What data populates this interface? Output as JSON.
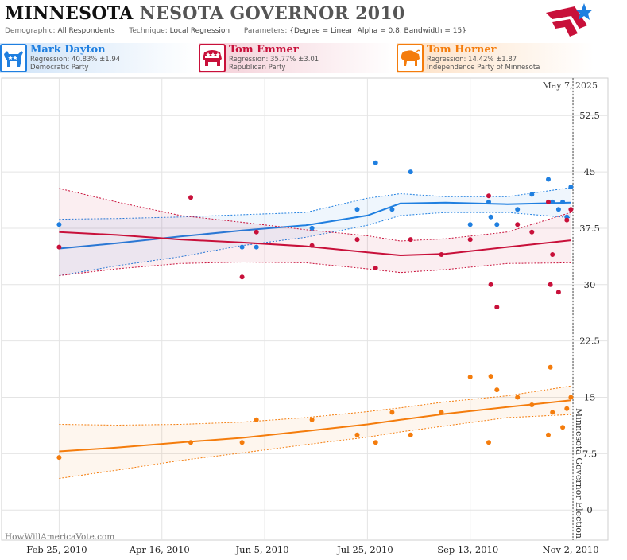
{
  "header": {
    "title_bold": "MINNESOTA",
    "title_rest": "NESOTA GOVERNOR 2010",
    "demographic_label": "Demographic:",
    "demographic_value": "All Respondents",
    "technique_label": "Technique:",
    "technique_value": "Local Regression",
    "parameters_label": "Parameters:",
    "parameters_value": "{Degree = Linear, Alpha = 0.8, Bandwidth = 15}"
  },
  "candidates": [
    {
      "name": "Mark Dayton",
      "regression": "Regression: 40.83% ±1.94",
      "party": "Democratic Party",
      "color": "#1f7fe0",
      "icon": "donkey-icon"
    },
    {
      "name": "Tom Emmer",
      "regression": "Regression: 35.77% ±3.01",
      "party": "Republican Party",
      "color": "#c8103a",
      "icon": "elephant-icon"
    },
    {
      "name": "Tom Horner",
      "regression": "Regression: 14.42% ±1.87",
      "party": "Independence Party  of Minnesota",
      "color": "#f47c0c",
      "icon": "buffalo-icon"
    }
  ],
  "footer": {
    "watermark": "HowWillAmericaVote.com"
  },
  "chart_data": {
    "type": "scatter",
    "x_axis": {
      "type": "date",
      "ticks": [
        "Feb 25, 2010",
        "Apr 16, 2010",
        "Jun 5, 2010",
        "Jul 25, 2010",
        "Sep 13, 2010",
        "Nov 2, 2010"
      ],
      "range": [
        "2010-01-28",
        "2010-11-19"
      ]
    },
    "y_axis": {
      "ticks": [
        "0",
        "7.5",
        "15",
        "22.5",
        "30",
        "37.5",
        "45",
        "52.5"
      ],
      "range": [
        -4,
        57.5
      ],
      "position": "right"
    },
    "grid": true,
    "annotations": {
      "current_date": "May 7, 2025",
      "election_label": "Minnesota Governor Election",
      "election_date": "2010-11-02"
    },
    "series": [
      {
        "name": "Mark Dayton",
        "color": "#1f7fe0",
        "points": [
          [
            "2010-02-25",
            38
          ],
          [
            "2010-05-25",
            35
          ],
          [
            "2010-06-01",
            35
          ],
          [
            "2010-06-28",
            37.5
          ],
          [
            "2010-07-20",
            40
          ],
          [
            "2010-07-29",
            46.2
          ],
          [
            "2010-08-06",
            40
          ],
          [
            "2010-08-15",
            45
          ],
          [
            "2010-09-13",
            38
          ],
          [
            "2010-09-22",
            41
          ],
          [
            "2010-09-23",
            39
          ],
          [
            "2010-09-26",
            38
          ],
          [
            "2010-10-06",
            40
          ],
          [
            "2010-10-13",
            42
          ],
          [
            "2010-10-21",
            44
          ],
          [
            "2010-10-23",
            41
          ],
          [
            "2010-10-26",
            40
          ],
          [
            "2010-10-28",
            41
          ],
          [
            "2010-10-30",
            39
          ],
          [
            "2010-11-01",
            43
          ]
        ],
        "trend": [
          [
            "2010-02-25",
            34.8
          ],
          [
            "2010-03-25",
            35.5
          ],
          [
            "2010-04-25",
            36.4
          ],
          [
            "2010-05-25",
            37.2
          ],
          [
            "2010-06-25",
            37.9
          ],
          [
            "2010-07-25",
            39.2
          ],
          [
            "2010-08-10",
            40.8
          ],
          [
            "2010-09-01",
            40.9
          ],
          [
            "2010-10-01",
            40.7
          ],
          [
            "2010-11-01",
            40.9
          ]
        ],
        "trend_upper": [
          [
            "2010-02-25",
            38.7
          ],
          [
            "2010-03-25",
            38.8
          ],
          [
            "2010-04-25",
            39.0
          ],
          [
            "2010-05-25",
            39.3
          ],
          [
            "2010-06-25",
            39.6
          ],
          [
            "2010-07-25",
            41.5
          ],
          [
            "2010-08-10",
            42.1
          ],
          [
            "2010-09-01",
            41.7
          ],
          [
            "2010-10-01",
            41.7
          ],
          [
            "2010-11-01",
            42.9
          ]
        ],
        "trend_lower": [
          [
            "2010-02-25",
            31.2
          ],
          [
            "2010-03-25",
            32.5
          ],
          [
            "2010-04-25",
            33.7
          ],
          [
            "2010-05-25",
            35.2
          ],
          [
            "2010-06-25",
            36.3
          ],
          [
            "2010-07-25",
            37.9
          ],
          [
            "2010-08-10",
            39.2
          ],
          [
            "2010-09-01",
            39.6
          ],
          [
            "2010-10-01",
            39.6
          ],
          [
            "2010-11-01",
            38.9
          ]
        ]
      },
      {
        "name": "Tom Emmer",
        "color": "#c8103a",
        "points": [
          [
            "2010-02-25",
            35
          ],
          [
            "2010-04-30",
            41.6
          ],
          [
            "2010-05-25",
            31
          ],
          [
            "2010-06-01",
            37
          ],
          [
            "2010-06-28",
            35.2
          ],
          [
            "2010-07-20",
            36
          ],
          [
            "2010-07-29",
            32.2
          ],
          [
            "2010-08-15",
            36
          ],
          [
            "2010-08-30",
            34
          ],
          [
            "2010-09-13",
            36
          ],
          [
            "2010-09-22",
            41.8
          ],
          [
            "2010-09-23",
            30
          ],
          [
            "2010-09-26",
            27
          ],
          [
            "2010-10-06",
            38
          ],
          [
            "2010-10-13",
            37
          ],
          [
            "2010-10-21",
            41
          ],
          [
            "2010-10-22",
            30
          ],
          [
            "2010-10-23",
            34
          ],
          [
            "2010-10-26",
            29
          ],
          [
            "2010-10-30",
            38.6
          ],
          [
            "2010-11-01",
            40
          ]
        ],
        "trend": [
          [
            "2010-02-25",
            37.0
          ],
          [
            "2010-03-25",
            36.6
          ],
          [
            "2010-04-25",
            36.0
          ],
          [
            "2010-05-25",
            35.6
          ],
          [
            "2010-06-25",
            35.1
          ],
          [
            "2010-07-25",
            34.3
          ],
          [
            "2010-08-10",
            33.9
          ],
          [
            "2010-09-01",
            34.1
          ],
          [
            "2010-10-01",
            35.0
          ],
          [
            "2010-11-01",
            35.9
          ]
        ],
        "trend_upper": [
          [
            "2010-02-25",
            42.8
          ],
          [
            "2010-03-25",
            41.0
          ],
          [
            "2010-04-25",
            39.2
          ],
          [
            "2010-05-25",
            38.3
          ],
          [
            "2010-06-25",
            37.3
          ],
          [
            "2010-07-25",
            36.5
          ],
          [
            "2010-08-10",
            35.8
          ],
          [
            "2010-09-01",
            36.1
          ],
          [
            "2010-10-01",
            37.0
          ],
          [
            "2010-11-01",
            39.6
          ]
        ],
        "trend_lower": [
          [
            "2010-02-25",
            31.2
          ],
          [
            "2010-03-25",
            32.1
          ],
          [
            "2010-04-25",
            32.8
          ],
          [
            "2010-05-25",
            33.0
          ],
          [
            "2010-06-25",
            32.9
          ],
          [
            "2010-07-25",
            32.1
          ],
          [
            "2010-08-10",
            31.6
          ],
          [
            "2010-09-01",
            32.0
          ],
          [
            "2010-10-01",
            32.8
          ],
          [
            "2010-11-01",
            32.9
          ]
        ]
      },
      {
        "name": "Tom Horner",
        "color": "#f47c0c",
        "points": [
          [
            "2010-02-25",
            7
          ],
          [
            "2010-04-30",
            9
          ],
          [
            "2010-05-25",
            9
          ],
          [
            "2010-06-01",
            12
          ],
          [
            "2010-06-28",
            12
          ],
          [
            "2010-07-20",
            10
          ],
          [
            "2010-07-29",
            9
          ],
          [
            "2010-08-06",
            13
          ],
          [
            "2010-08-15",
            10
          ],
          [
            "2010-08-30",
            13
          ],
          [
            "2010-09-13",
            17.7
          ],
          [
            "2010-09-22",
            9
          ],
          [
            "2010-09-23",
            17.8
          ],
          [
            "2010-09-26",
            16
          ],
          [
            "2010-10-06",
            15
          ],
          [
            "2010-10-13",
            14
          ],
          [
            "2010-10-21",
            10
          ],
          [
            "2010-10-22",
            19
          ],
          [
            "2010-10-23",
            13
          ],
          [
            "2010-10-28",
            11
          ],
          [
            "2010-10-30",
            13.5
          ],
          [
            "2010-11-01",
            15
          ]
        ],
        "trend": [
          [
            "2010-02-25",
            7.8
          ],
          [
            "2010-03-25",
            8.3
          ],
          [
            "2010-04-25",
            9.0
          ],
          [
            "2010-05-25",
            9.6
          ],
          [
            "2010-06-25",
            10.5
          ],
          [
            "2010-07-25",
            11.4
          ],
          [
            "2010-08-10",
            12.0
          ],
          [
            "2010-09-01",
            12.8
          ],
          [
            "2010-10-01",
            13.7
          ],
          [
            "2010-11-01",
            14.6
          ]
        ],
        "trend_upper": [
          [
            "2010-02-25",
            11.4
          ],
          [
            "2010-03-25",
            11.3
          ],
          [
            "2010-04-25",
            11.4
          ],
          [
            "2010-05-25",
            11.7
          ],
          [
            "2010-06-25",
            12.3
          ],
          [
            "2010-07-25",
            13.1
          ],
          [
            "2010-08-10",
            13.6
          ],
          [
            "2010-09-01",
            14.4
          ],
          [
            "2010-10-01",
            15.2
          ],
          [
            "2010-11-01",
            16.5
          ]
        ],
        "trend_lower": [
          [
            "2010-02-25",
            4.2
          ],
          [
            "2010-03-25",
            5.3
          ],
          [
            "2010-04-25",
            6.6
          ],
          [
            "2010-05-25",
            7.6
          ],
          [
            "2010-06-25",
            8.7
          ],
          [
            "2010-07-25",
            9.7
          ],
          [
            "2010-08-10",
            10.4
          ],
          [
            "2010-09-01",
            11.2
          ],
          [
            "2010-10-01",
            12.3
          ],
          [
            "2010-11-01",
            12.7
          ]
        ]
      }
    ]
  }
}
